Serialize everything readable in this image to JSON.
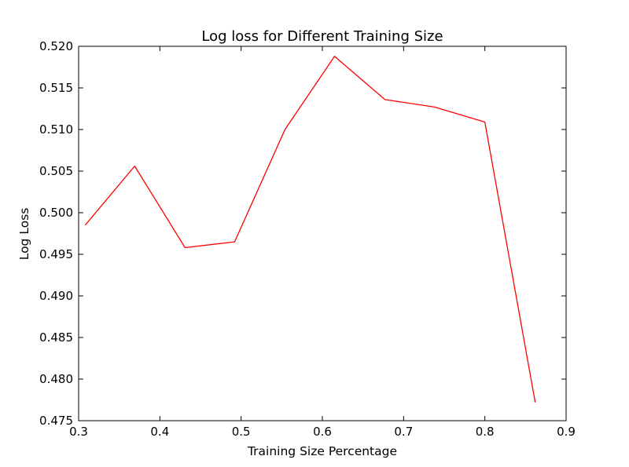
{
  "chart_data": {
    "type": "line",
    "title": "Log loss for Different Training Size",
    "xlabel": "Training Size Percentage",
    "ylabel": "Log Loss",
    "xlim": [
      0.3,
      0.9
    ],
    "ylim": [
      0.475,
      0.52
    ],
    "x_ticks": [
      0.3,
      0.4,
      0.5,
      0.6,
      0.7,
      0.8,
      0.9
    ],
    "x_tick_labels": [
      "0.3",
      "0.4",
      "0.5",
      "0.6",
      "0.7",
      "0.8",
      "0.9"
    ],
    "y_ticks": [
      0.475,
      0.48,
      0.485,
      0.49,
      0.495,
      0.5,
      0.505,
      0.51,
      0.515,
      0.52
    ],
    "y_tick_labels": [
      "0.475",
      "0.480",
      "0.485",
      "0.490",
      "0.495",
      "0.500",
      "0.505",
      "0.510",
      "0.515",
      "0.520"
    ],
    "grid": false,
    "series": [
      {
        "color": "#ff0000",
        "x": [
          0.308,
          0.369,
          0.431,
          0.492,
          0.554,
          0.615,
          0.677,
          0.738,
          0.8,
          0.862
        ],
        "y": [
          0.4985,
          0.5056,
          0.4958,
          0.4965,
          0.51,
          0.5188,
          0.5136,
          0.5127,
          0.5109,
          0.4772
        ]
      }
    ]
  }
}
